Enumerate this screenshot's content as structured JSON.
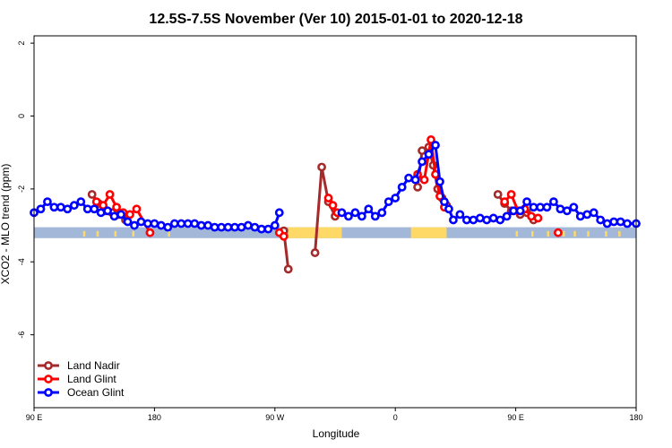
{
  "chart_data": {
    "type": "line",
    "title": "12.5S-7.5S November (Ver 10)   2015-01-01 to 2020-12-18",
    "xlabel": "Longitude",
    "ylabel": "XCO2 - MLO trend (ppm)",
    "xlim": [
      -90,
      180
    ],
    "ylim": [
      -8,
      2.2
    ],
    "x_ticks": [
      {
        "value": -90,
        "label": "90 E"
      },
      {
        "value": -36,
        "label": "180"
      },
      {
        "value": 18,
        "label": "90 W"
      },
      {
        "value": 72,
        "label": "0"
      },
      {
        "value": 126,
        "label": "90 E"
      },
      {
        "value": 180,
        "label": "180"
      }
    ],
    "y_ticks": [
      {
        "value": 2,
        "label": "2"
      },
      {
        "value": 0,
        "label": "0"
      },
      {
        "value": -2,
        "label": "-2"
      },
      {
        "value": -4,
        "label": "-4"
      },
      {
        "value": -6,
        "label": "-6"
      }
    ],
    "legend": {
      "position": "bottom-left",
      "entries": [
        {
          "name": "Land Nadir",
          "color": "#a52a2a"
        },
        {
          "name": "Land Glint",
          "color": "#ff0000"
        },
        {
          "name": "Ocean Glint",
          "color": "#0000ff"
        }
      ]
    },
    "land_mask": {
      "y_range": [
        -3.35,
        -3.05
      ],
      "ocean_color": "#a3b8d8",
      "land_color": "#ffd966",
      "land_segments": [
        [
          24,
          48
        ],
        [
          79,
          95
        ]
      ],
      "land_flecks": [
        [
          -68,
          -67
        ],
        [
          -62,
          -61
        ],
        [
          -54,
          -53
        ],
        [
          -46,
          -45
        ],
        [
          -30,
          -29
        ],
        [
          126,
          127
        ],
        [
          133,
          134
        ],
        [
          140,
          141
        ],
        [
          147,
          148
        ],
        [
          152,
          153
        ],
        [
          158,
          159
        ],
        [
          166,
          167
        ],
        [
          172,
          173
        ]
      ]
    },
    "series": [
      {
        "name": "Land Nadir",
        "color": "#a52a2a",
        "points": [
          [
            -64,
            -2.15
          ],
          [
            -61,
            -2.4
          ],
          [
            -58,
            -2.6
          ],
          [
            -55,
            -2.65
          ],
          [
            -52,
            -2.7
          ],
          [
            -49,
            -2.85
          ],
          [
            22,
            -3.15
          ],
          [
            24,
            -4.2
          ],
          [
            36,
            -3.75
          ],
          [
            39,
            -1.4
          ],
          [
            42,
            -2.35
          ],
          [
            45,
            -2.75
          ],
          [
            82,
            -1.95
          ],
          [
            84,
            -0.95
          ],
          [
            87,
            -0.85
          ],
          [
            89,
            -1.35
          ],
          [
            91,
            -2.0
          ],
          [
            93,
            -2.25
          ],
          [
            95,
            -2.45
          ],
          [
            118,
            -2.15
          ],
          [
            121,
            -2.4
          ],
          [
            124,
            -2.6
          ],
          [
            128,
            -2.7
          ],
          [
            131,
            -2.65
          ],
          [
            134,
            -2.85
          ]
        ]
      },
      {
        "name": "Land Glint",
        "color": "#ff0000",
        "points": [
          [
            -62,
            -2.35
          ],
          [
            -59,
            -2.45
          ],
          [
            -56,
            -2.15
          ],
          [
            -53,
            -2.5
          ],
          [
            -50,
            -2.65
          ],
          [
            -47,
            -2.7
          ],
          [
            -44,
            -2.55
          ],
          [
            -38,
            -3.2
          ],
          [
            20,
            -3.2
          ],
          [
            22,
            -3.3
          ],
          [
            42,
            -2.25
          ],
          [
            44,
            -2.45
          ],
          [
            46,
            -2.65
          ],
          [
            82,
            -1.6
          ],
          [
            85,
            -1.75
          ],
          [
            88,
            -0.65
          ],
          [
            90,
            -1.6
          ],
          [
            92,
            -2.2
          ],
          [
            94,
            -2.5
          ],
          [
            121,
            -2.35
          ],
          [
            124,
            -2.15
          ],
          [
            127,
            -2.6
          ],
          [
            130,
            -2.55
          ],
          [
            133,
            -2.75
          ],
          [
            136,
            -2.8
          ],
          [
            145,
            -3.2
          ]
        ]
      },
      {
        "name": "Ocean Glint",
        "color": "#0000ff",
        "points": [
          [
            -90,
            -2.65
          ],
          [
            -87,
            -2.55
          ],
          [
            -84,
            -2.35
          ],
          [
            -81,
            -2.5
          ],
          [
            -78,
            -2.5
          ],
          [
            -75,
            -2.55
          ],
          [
            -72,
            -2.45
          ],
          [
            -69,
            -2.35
          ],
          [
            -66,
            -2.55
          ],
          [
            -63,
            -2.55
          ],
          [
            -60,
            -2.65
          ],
          [
            -57,
            -2.6
          ],
          [
            -54,
            -2.75
          ],
          [
            -51,
            -2.7
          ],
          [
            -48,
            -2.9
          ],
          [
            -45,
            -3.0
          ],
          [
            -42,
            -2.9
          ],
          [
            -39,
            -2.95
          ],
          [
            -36,
            -2.95
          ],
          [
            -33,
            -3.0
          ],
          [
            -30,
            -3.05
          ],
          [
            -27,
            -2.95
          ],
          [
            -24,
            -2.95
          ],
          [
            -21,
            -2.95
          ],
          [
            -18,
            -2.95
          ],
          [
            -15,
            -3.0
          ],
          [
            -12,
            -3.0
          ],
          [
            -9,
            -3.05
          ],
          [
            -6,
            -3.05
          ],
          [
            -3,
            -3.05
          ],
          [
            0,
            -3.05
          ],
          [
            3,
            -3.05
          ],
          [
            6,
            -3.0
          ],
          [
            9,
            -3.05
          ],
          [
            12,
            -3.1
          ],
          [
            15,
            -3.1
          ],
          [
            18,
            -3.0
          ],
          [
            20,
            -2.65
          ],
          [
            48,
            -2.65
          ],
          [
            51,
            -2.75
          ],
          [
            54,
            -2.65
          ],
          [
            57,
            -2.75
          ],
          [
            60,
            -2.55
          ],
          [
            63,
            -2.75
          ],
          [
            66,
            -2.65
          ],
          [
            69,
            -2.35
          ],
          [
            72,
            -2.25
          ],
          [
            75,
            -1.95
          ],
          [
            78,
            -1.7
          ],
          [
            81,
            -1.75
          ],
          [
            84,
            -1.25
          ],
          [
            87,
            -1.05
          ],
          [
            90,
            -0.8
          ],
          [
            92,
            -1.8
          ],
          [
            94,
            -2.35
          ],
          [
            96,
            -2.55
          ],
          [
            98,
            -2.85
          ],
          [
            101,
            -2.7
          ],
          [
            104,
            -2.85
          ],
          [
            107,
            -2.85
          ],
          [
            110,
            -2.8
          ],
          [
            113,
            -2.85
          ],
          [
            116,
            -2.8
          ],
          [
            119,
            -2.85
          ],
          [
            122,
            -2.75
          ],
          [
            125,
            -2.6
          ],
          [
            128,
            -2.6
          ],
          [
            131,
            -2.35
          ],
          [
            134,
            -2.5
          ],
          [
            137,
            -2.5
          ],
          [
            140,
            -2.5
          ],
          [
            143,
            -2.35
          ],
          [
            146,
            -2.55
          ],
          [
            149,
            -2.6
          ],
          [
            152,
            -2.5
          ],
          [
            155,
            -2.75
          ],
          [
            158,
            -2.7
          ],
          [
            161,
            -2.65
          ],
          [
            164,
            -2.85
          ],
          [
            167,
            -2.95
          ],
          [
            170,
            -2.9
          ],
          [
            173,
            -2.9
          ],
          [
            176,
            -2.95
          ],
          [
            180,
            -2.95
          ]
        ]
      }
    ]
  }
}
